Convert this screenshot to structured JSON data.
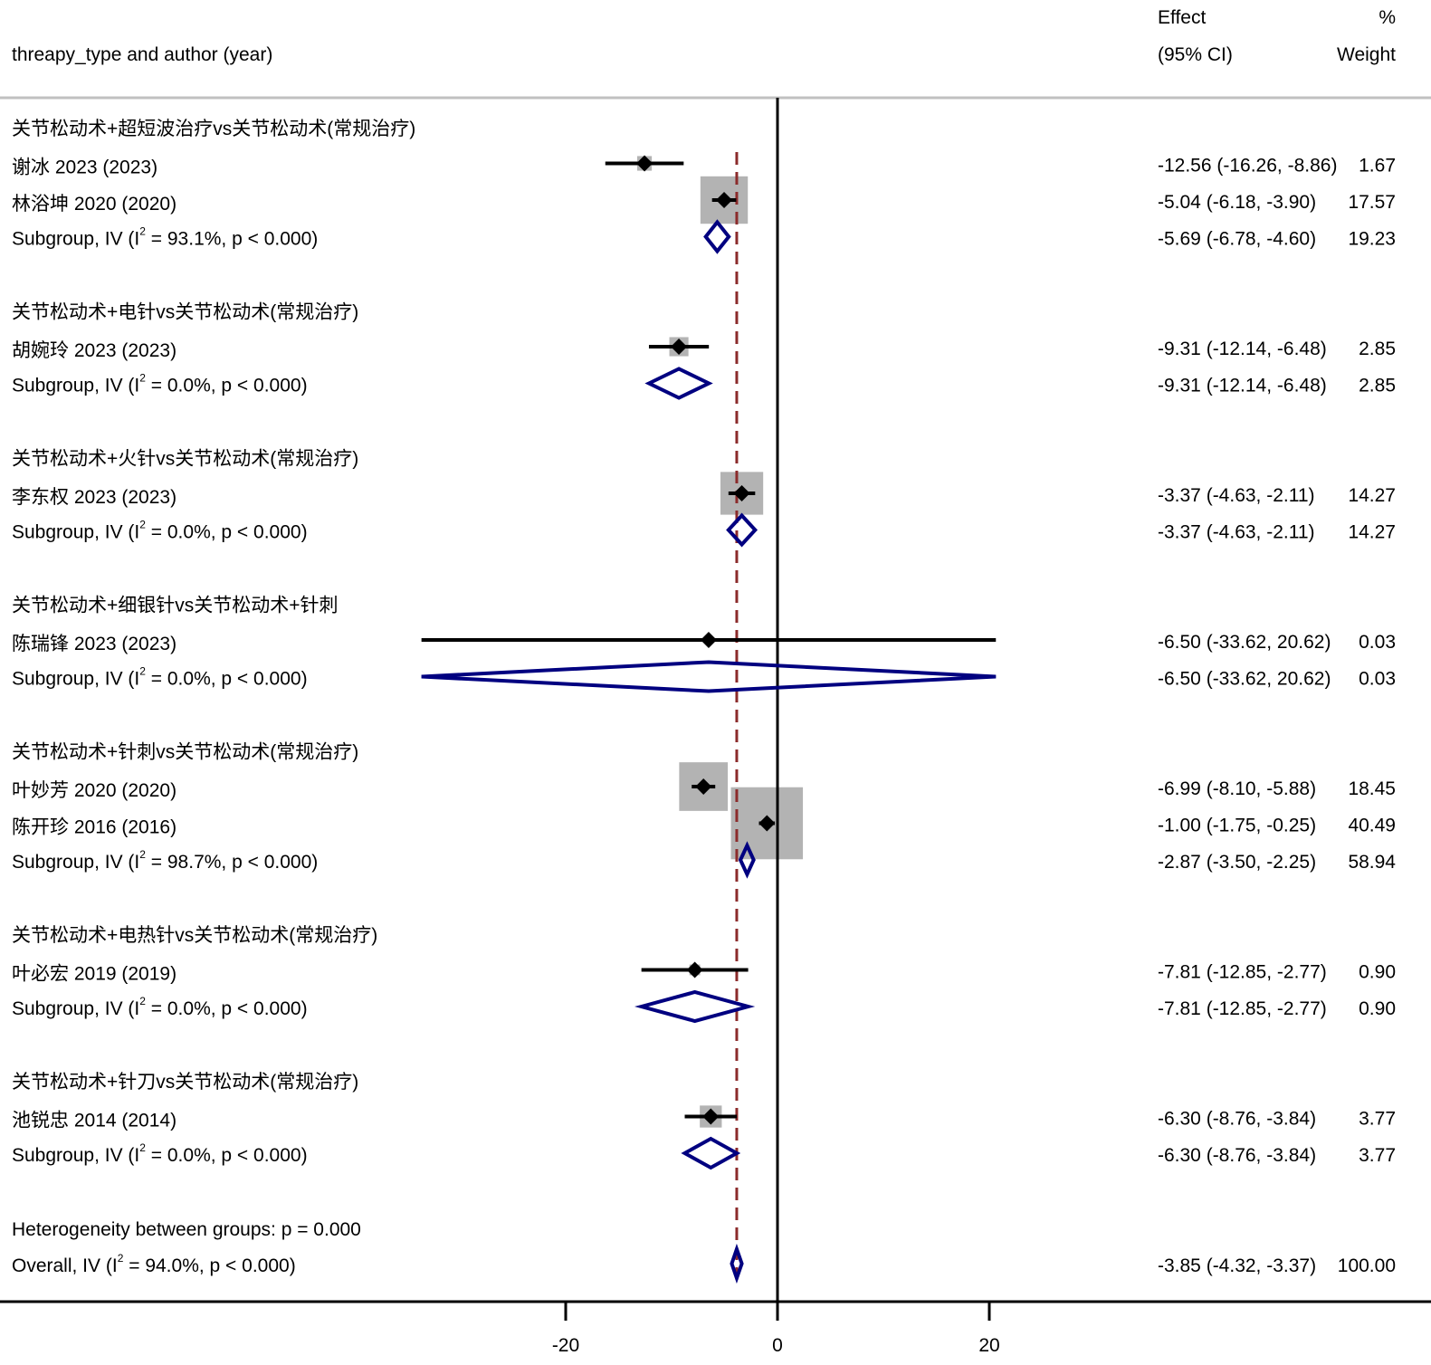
{
  "header": {
    "study_col_label": "threapy_type and author (year)",
    "effect_label_line1": "Effect",
    "effect_label_line2": "(95% CI)",
    "weight_label_line1": "%",
    "weight_label_line2": "Weight"
  },
  "chart_data": {
    "type": "forest",
    "xaxis": {
      "range": [
        -34,
        34
      ],
      "ticks": [
        -20,
        0,
        20
      ],
      "tick_labels": [
        "-20",
        "0",
        "20"
      ]
    },
    "overall_line_value": -3.85,
    "colors": {
      "subgroup_diamond": "#000080",
      "overall_line": "#8b2b2b",
      "weight_box": "#b3b3b3",
      "point": "#000000"
    },
    "groups": [
      {
        "label": "关节松动术+超短波治疗vs关节松动术(常规治疗)",
        "studies": [
          {
            "label": "谢冰 2023 (2023)",
            "effect": -12.56,
            "ci_low": -16.26,
            "ci_high": -8.86,
            "effect_text": "-12.56 (-16.26, -8.86)",
            "weight": 1.67,
            "weight_text": "1.67"
          },
          {
            "label": "林浴坤 2020 (2020)",
            "effect": -5.04,
            "ci_low": -6.18,
            "ci_high": -3.9,
            "effect_text": "-5.04 (-6.18, -3.90)",
            "weight": 17.57,
            "weight_text": "17.57"
          }
        ],
        "subgroup": {
          "label_prefix": "Subgroup, IV (I",
          "label_suffix": " = 93.1%, p < 0.000)",
          "effect": -5.69,
          "ci_low": -6.78,
          "ci_high": -4.6,
          "effect_text": "-5.69 (-6.78, -4.60)",
          "weight_text": "19.23"
        }
      },
      {
        "label": "关节松动术+电针vs关节松动术(常规治疗)",
        "studies": [
          {
            "label": "胡婉玲 2023 (2023)",
            "effect": -9.31,
            "ci_low": -12.14,
            "ci_high": -6.48,
            "effect_text": "-9.31 (-12.14, -6.48)",
            "weight": 2.85,
            "weight_text": "2.85"
          }
        ],
        "subgroup": {
          "label_prefix": "Subgroup, IV (I",
          "label_suffix": " = 0.0%, p < 0.000)",
          "effect": -9.31,
          "ci_low": -12.14,
          "ci_high": -6.48,
          "effect_text": "-9.31 (-12.14, -6.48)",
          "weight_text": "2.85"
        }
      },
      {
        "label": "关节松动术+火针vs关节松动术(常规治疗)",
        "studies": [
          {
            "label": "李东权 2023 (2023)",
            "effect": -3.37,
            "ci_low": -4.63,
            "ci_high": -2.11,
            "effect_text": "-3.37 (-4.63, -2.11)",
            "weight": 14.27,
            "weight_text": "14.27"
          }
        ],
        "subgroup": {
          "label_prefix": "Subgroup, IV (I",
          "label_suffix": " = 0.0%, p < 0.000)",
          "effect": -3.37,
          "ci_low": -4.63,
          "ci_high": -2.11,
          "effect_text": "-3.37 (-4.63, -2.11)",
          "weight_text": "14.27"
        }
      },
      {
        "label": "关节松动术+细银针vs关节松动术+针刺",
        "studies": [
          {
            "label": "陈瑞锋 2023 (2023)",
            "effect": -6.5,
            "ci_low": -33.62,
            "ci_high": 20.62,
            "effect_text": "-6.50 (-33.62, 20.62)",
            "weight": 0.03,
            "weight_text": "0.03"
          }
        ],
        "subgroup": {
          "label_prefix": "Subgroup, IV (I",
          "label_suffix": " = 0.0%, p < 0.000)",
          "effect": -6.5,
          "ci_low": -33.62,
          "ci_high": 20.62,
          "effect_text": "-6.50 (-33.62, 20.62)",
          "weight_text": "0.03"
        }
      },
      {
        "label": "关节松动术+针刺vs关节松动术(常规治疗)",
        "studies": [
          {
            "label": "叶妙芳 2020 (2020)",
            "effect": -6.99,
            "ci_low": -8.1,
            "ci_high": -5.88,
            "effect_text": "-6.99 (-8.10, -5.88)",
            "weight": 18.45,
            "weight_text": "18.45"
          },
          {
            "label": "陈开珍 2016 (2016)",
            "effect": -1.0,
            "ci_low": -1.75,
            "ci_high": -0.25,
            "effect_text": "-1.00 (-1.75, -0.25)",
            "weight": 40.49,
            "weight_text": "40.49"
          }
        ],
        "subgroup": {
          "label_prefix": "Subgroup, IV (I",
          "label_suffix": " = 98.7%, p < 0.000)",
          "effect": -2.87,
          "ci_low": -3.5,
          "ci_high": -2.25,
          "effect_text": "-2.87 (-3.50, -2.25)",
          "weight_text": "58.94"
        }
      },
      {
        "label": "关节松动术+电热针vs关节松动术(常规治疗)",
        "studies": [
          {
            "label": "叶必宏 2019 (2019)",
            "effect": -7.81,
            "ci_low": -12.85,
            "ci_high": -2.77,
            "effect_text": "-7.81 (-12.85, -2.77)",
            "weight": 0.9,
            "weight_text": "0.90"
          }
        ],
        "subgroup": {
          "label_prefix": "Subgroup, IV (I",
          "label_suffix": " = 0.0%, p < 0.000)",
          "effect": -7.81,
          "ci_low": -12.85,
          "ci_high": -2.77,
          "effect_text": "-7.81 (-12.85, -2.77)",
          "weight_text": "0.90"
        }
      },
      {
        "label": "关节松动术+针刀vs关节松动术(常规治疗)",
        "studies": [
          {
            "label": "池锐忠 2014 (2014)",
            "effect": -6.3,
            "ci_low": -8.76,
            "ci_high": -3.84,
            "effect_text": "-6.30 (-8.76, -3.84)",
            "weight": 3.77,
            "weight_text": "3.77"
          }
        ],
        "subgroup": {
          "label_prefix": "Subgroup, IV (I",
          "label_suffix": " = 0.0%, p < 0.000)",
          "effect": -6.3,
          "ci_low": -8.76,
          "ci_high": -3.84,
          "effect_text": "-6.30 (-8.76, -3.84)",
          "weight_text": "3.77"
        }
      }
    ],
    "heterogeneity_text": "Heterogeneity between groups: p = 0.000",
    "overall": {
      "label_prefix": "Overall, IV (I",
      "label_suffix": " = 94.0%, p < 0.000)",
      "effect": -3.85,
      "ci_low": -4.32,
      "ci_high": -3.37,
      "effect_text": "-3.85 (-4.32, -3.37)",
      "weight_text": "100.00"
    },
    "superscript": "2"
  }
}
